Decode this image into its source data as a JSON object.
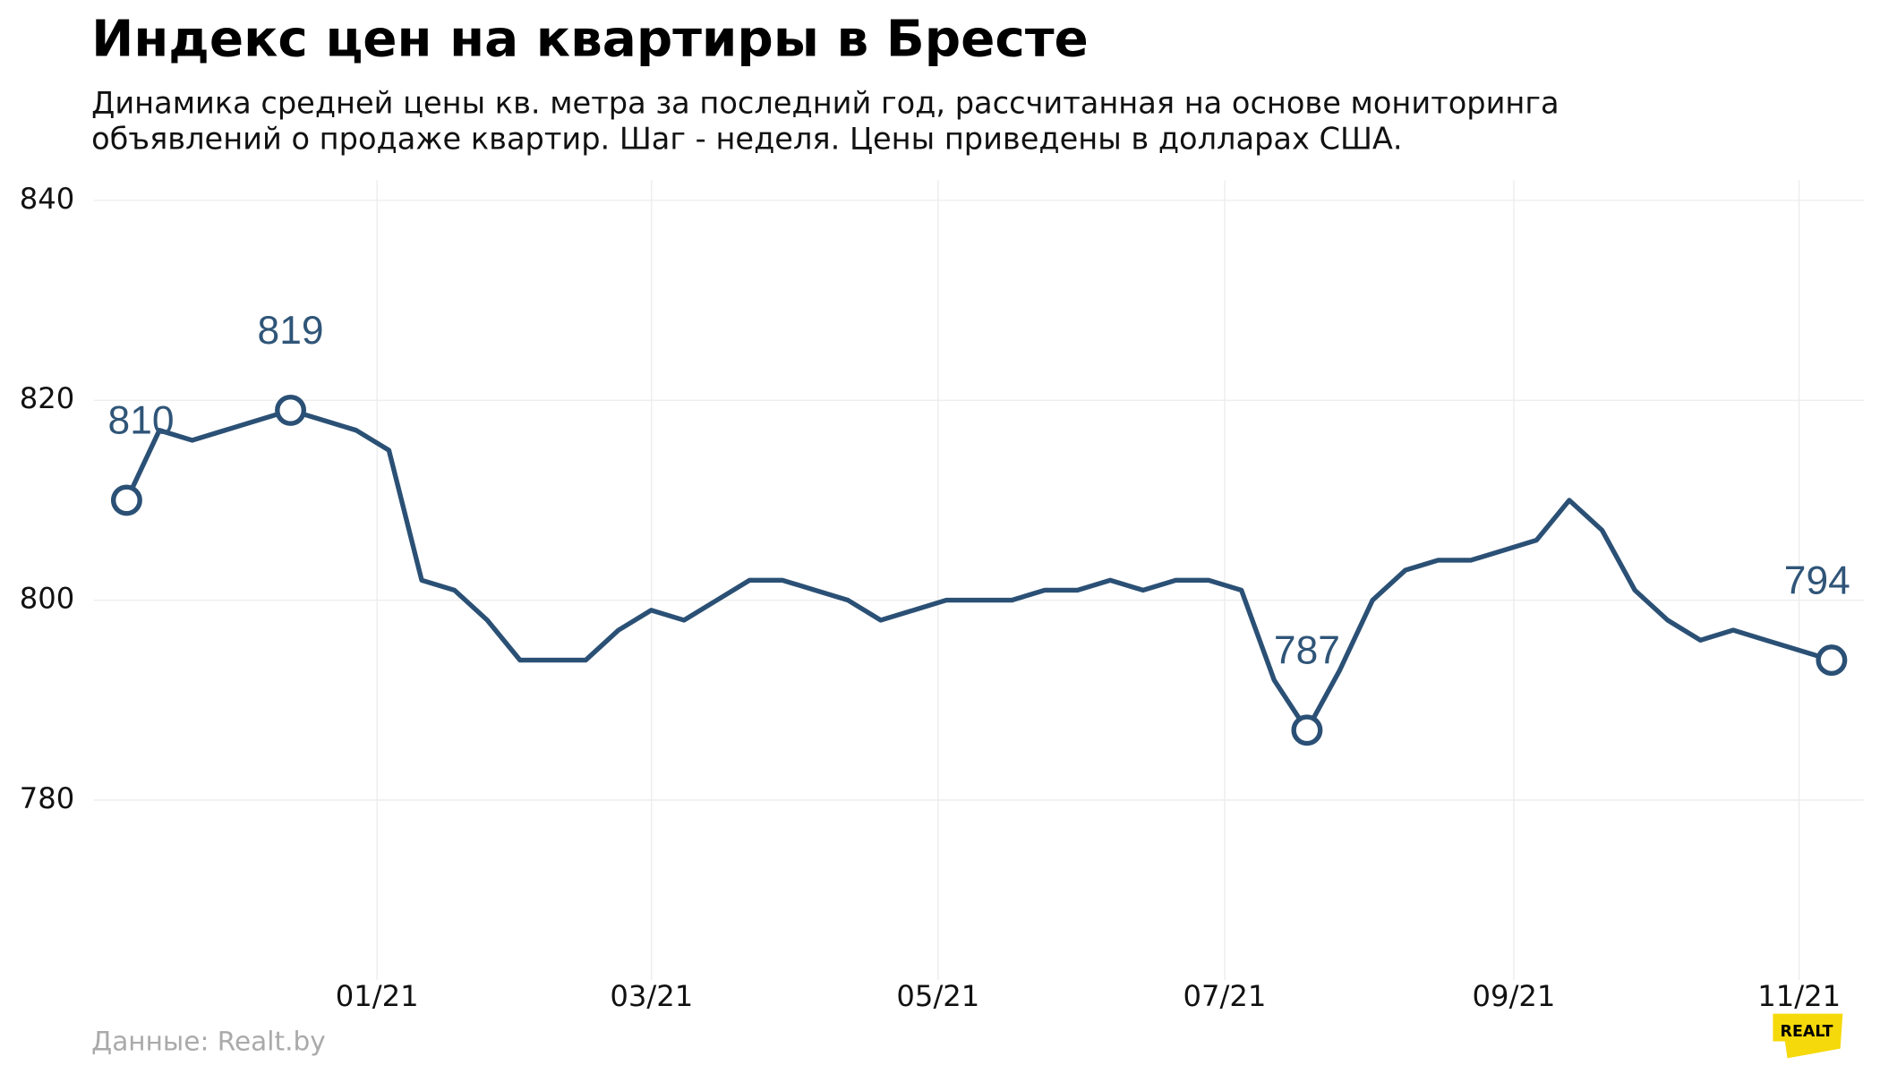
{
  "chart_data": {
    "type": "line",
    "title": "Индекс цен на квартиры в Бресте",
    "subtitle": [
      "Динамика средней цены кв. метра за последний год, рассчитанная на основе мониторинга",
      "объявлений о продаже квартир. Шаг - неделя. Цены приведены в долларах США."
    ],
    "source": "Данные: Realt.by",
    "logo": "REALT",
    "color": "#2b5075",
    "values": [
      810,
      817,
      816,
      817,
      818,
      819,
      818,
      817,
      815,
      802,
      801,
      798,
      794,
      794,
      794,
      797,
      799,
      798,
      800,
      802,
      802,
      801,
      800,
      798,
      799,
      800,
      800,
      800,
      801,
      801,
      802,
      801,
      802,
      802,
      801,
      792,
      787,
      793,
      800,
      803,
      804,
      804,
      805,
      806,
      810,
      807,
      801,
      798,
      796,
      797,
      796,
      795,
      794
    ],
    "highlights": [
      0,
      5,
      36,
      52
    ],
    "xlim": [
      -1,
      53
    ],
    "xticks": [
      {
        "value": 7.64,
        "label": "01/21"
      },
      {
        "value": 16.01,
        "label": "03/21"
      },
      {
        "value": 24.75,
        "label": "05/21"
      },
      {
        "value": 33.49,
        "label": "07/21"
      },
      {
        "value": 42.31,
        "label": "09/21"
      },
      {
        "value": 51.01,
        "label": "11/21"
      }
    ],
    "ylim": [
      762,
      842
    ],
    "yticks": [
      780,
      800,
      820,
      840
    ],
    "grid": true
  }
}
